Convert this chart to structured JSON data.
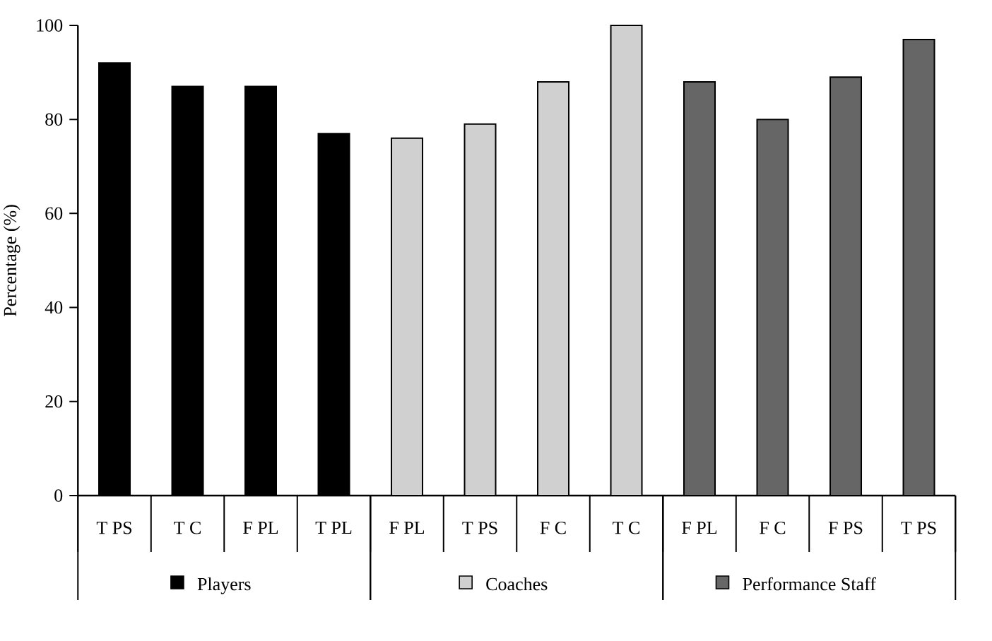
{
  "chart_data": {
    "type": "bar",
    "ylabel": "Percentage (%)",
    "categories": [
      "T PS",
      "T C",
      "F PL",
      "T PL",
      "F PL",
      "T PS",
      "F C",
      "T C",
      "F PL",
      "F C",
      "F PS",
      "T PS"
    ],
    "series": [
      {
        "name": "Players",
        "color": "#000000",
        "values": [
          92,
          87,
          87,
          77,
          null,
          null,
          null,
          null,
          null,
          null,
          null,
          null
        ]
      },
      {
        "name": "Coaches",
        "color": "#d0d0d0",
        "values": [
          null,
          null,
          null,
          null,
          76,
          79,
          88,
          100,
          null,
          null,
          null,
          null
        ]
      },
      {
        "name": "Performance Staff",
        "color": "#666666",
        "values": [
          null,
          null,
          null,
          null,
          null,
          null,
          null,
          null,
          88,
          80,
          89,
          97
        ]
      }
    ],
    "legend": "bottom",
    "ylim": [
      0,
      100
    ],
    "yticks": [
      0,
      20,
      40,
      60,
      80,
      100
    ]
  }
}
